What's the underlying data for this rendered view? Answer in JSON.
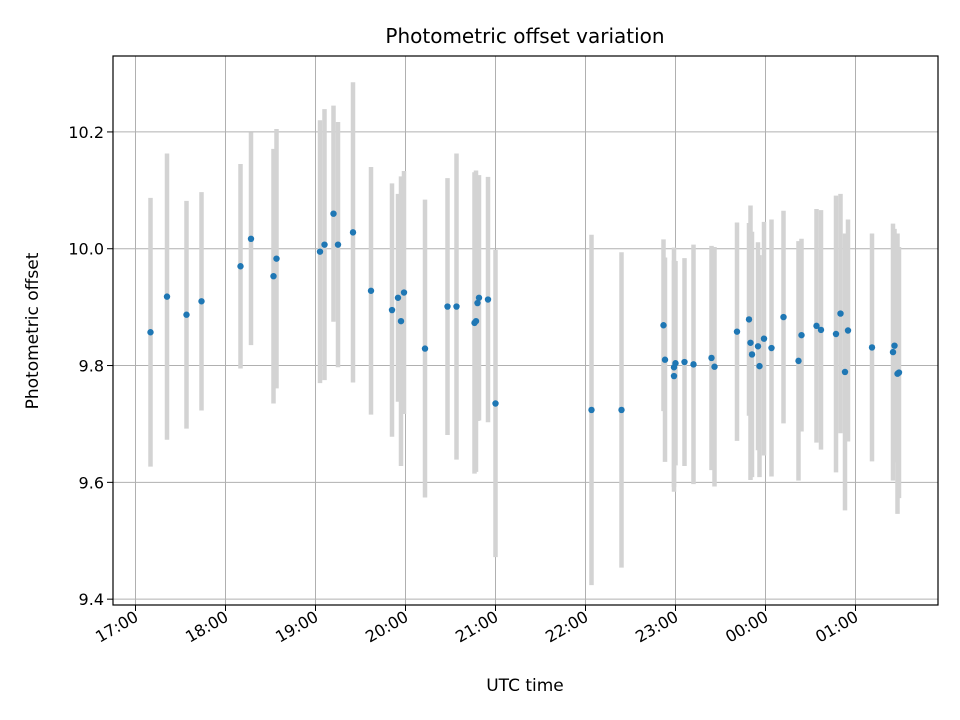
{
  "chart_data": {
    "type": "scatter",
    "title": "Photometric offset variation",
    "xlabel": "UTC time",
    "ylabel": "Photometric offset",
    "x_axis_kind": "time",
    "x_ticks": [
      "17:00",
      "18:00",
      "19:00",
      "20:00",
      "21:00",
      "22:00",
      "23:00",
      "00:00",
      "01:00"
    ],
    "y_ticks": [
      "9.4",
      "9.6",
      "9.8",
      "10.0",
      "10.2"
    ],
    "xlim": [
      "16:45",
      "01:55"
    ],
    "ylim": [
      9.39,
      10.33
    ],
    "grid": true,
    "colors": {
      "point": "#1f77b4",
      "errorbar": "#d3d3d3",
      "grid": "#b0b0b0"
    },
    "series": [
      {
        "x": [
          "17:10",
          "17:21",
          "17:34",
          "17:44",
          "18:10",
          "18:17",
          "18:32",
          "18:34",
          "19:03",
          "19:06",
          "19:12",
          "19:15",
          "19:25",
          "19:37",
          "19:51",
          "19:55",
          "19:57",
          "19:59",
          "20:13",
          "20:28",
          "20:34",
          "20:46",
          "20:47",
          "20:48",
          "20:49",
          "20:55",
          "21:00",
          "22:04",
          "22:24",
          "22:52",
          "22:53",
          "22:59",
          "22:59",
          "23:00",
          "23:06",
          "23:12",
          "23:24",
          "23:26",
          "23:41",
          "23:49",
          "23:50",
          "23:51",
          "23:55",
          "23:56",
          "23:59",
          "00:04",
          "00:12",
          "00:22",
          "00:24",
          "00:34",
          "00:37",
          "00:47",
          "00:50",
          "00:53",
          "00:55",
          "01:11",
          "01:25",
          "01:26",
          "01:28",
          "01:29"
        ],
        "y": [
          9.857,
          9.918,
          9.887,
          9.91,
          9.97,
          10.017,
          9.953,
          9.983,
          9.995,
          10.007,
          10.06,
          10.007,
          10.028,
          9.928,
          9.895,
          9.916,
          9.876,
          9.925,
          9.829,
          9.901,
          9.901,
          9.873,
          9.876,
          9.907,
          9.916,
          9.913,
          9.735,
          9.724,
          9.724,
          9.869,
          9.81,
          9.782,
          9.797,
          9.804,
          9.806,
          9.802,
          9.813,
          9.798,
          9.858,
          9.879,
          9.839,
          9.819,
          9.833,
          9.799,
          9.846,
          9.83,
          9.883,
          9.808,
          9.852,
          9.868,
          9.861,
          9.854,
          9.889,
          9.789,
          9.86,
          9.831,
          9.823,
          9.834,
          9.786,
          9.788
        ],
        "y_err": [
          0.23,
          0.245,
          0.195,
          0.187,
          0.175,
          0.182,
          0.218,
          0.222,
          0.225,
          0.232,
          0.185,
          0.21,
          0.257,
          0.212,
          0.217,
          0.178,
          0.248,
          0.208,
          0.255,
          0.22,
          0.262,
          0.258,
          0.258,
          0.202,
          0.21,
          0.21,
          0.263,
          0.3,
          0.27,
          0.147,
          0.175,
          0.198,
          0.205,
          0.175,
          0.178,
          0.205,
          0.192,
          0.205,
          0.187,
          0.165,
          0.235,
          0.21,
          0.178,
          0.19,
          0.2,
          0.22,
          0.182,
          0.205,
          0.165,
          0.2,
          0.205,
          0.237,
          0.205,
          0.237,
          0.19,
          0.195,
          0.22,
          0.2,
          0.24,
          0.215
        ]
      }
    ]
  }
}
